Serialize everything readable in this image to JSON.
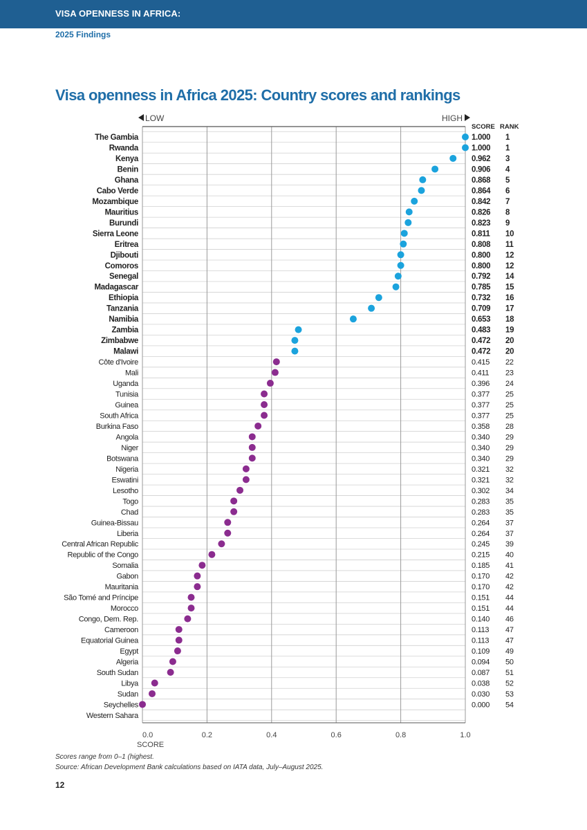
{
  "header": {
    "band_title": "VISA OPENNESS IN AFRICA:",
    "subtitle": "2025 Findings"
  },
  "colors": {
    "band": "#1f5f92",
    "accent": "#1f6ea8",
    "high_dot": "#1ba3dd",
    "low_dot": "#8b2c8f"
  },
  "chart_data": {
    "type": "scatter",
    "title": "Visa openness in Africa 2025: Country scores and rankings",
    "xlabel": "SCORE",
    "xlim": [
      0,
      1
    ],
    "xticks": [
      "0.0",
      "0.2",
      "0.4",
      "0.6",
      "0.8",
      "1.0"
    ],
    "xtick_values": [
      0,
      0.2,
      0.4,
      0.6,
      0.8,
      1.0
    ],
    "low_label": "LOW",
    "high_label": "HIGH",
    "score_header": "SCORE",
    "rank_header": "RANK",
    "countries": [
      {
        "name": "The Gambia",
        "score": 1.0,
        "score_text": "1.000",
        "rank": "1",
        "group": "high"
      },
      {
        "name": "Rwanda",
        "score": 1.0,
        "score_text": "1.000",
        "rank": "1",
        "group": "high"
      },
      {
        "name": "Kenya",
        "score": 0.962,
        "score_text": "0.962",
        "rank": "3",
        "group": "high"
      },
      {
        "name": "Benin",
        "score": 0.906,
        "score_text": "0.906",
        "rank": "4",
        "group": "high"
      },
      {
        "name": "Ghana",
        "score": 0.868,
        "score_text": "0.868",
        "rank": "5",
        "group": "high"
      },
      {
        "name": "Cabo Verde",
        "score": 0.864,
        "score_text": "0.864",
        "rank": "6",
        "group": "high"
      },
      {
        "name": "Mozambique",
        "score": 0.842,
        "score_text": "0.842",
        "rank": "7",
        "group": "high"
      },
      {
        "name": "Mauritius",
        "score": 0.826,
        "score_text": "0.826",
        "rank": "8",
        "group": "high"
      },
      {
        "name": "Burundi",
        "score": 0.823,
        "score_text": "0.823",
        "rank": "9",
        "group": "high"
      },
      {
        "name": "Sierra Leone",
        "score": 0.811,
        "score_text": "0.811",
        "rank": "10",
        "group": "high"
      },
      {
        "name": "Eritrea",
        "score": 0.808,
        "score_text": "0.808",
        "rank": "11",
        "group": "high"
      },
      {
        "name": "Djibouti",
        "score": 0.8,
        "score_text": "0.800",
        "rank": "12",
        "group": "high"
      },
      {
        "name": "Comoros",
        "score": 0.8,
        "score_text": "0.800",
        "rank": "12",
        "group": "high"
      },
      {
        "name": "Senegal",
        "score": 0.792,
        "score_text": "0.792",
        "rank": "14",
        "group": "high"
      },
      {
        "name": "Madagascar",
        "score": 0.785,
        "score_text": "0.785",
        "rank": "15",
        "group": "high"
      },
      {
        "name": "Ethiopia",
        "score": 0.732,
        "score_text": "0.732",
        "rank": "16",
        "group": "high"
      },
      {
        "name": "Tanzania",
        "score": 0.709,
        "score_text": "0.709",
        "rank": "17",
        "group": "high"
      },
      {
        "name": "Namibia",
        "score": 0.653,
        "score_text": "0.653",
        "rank": "18",
        "group": "high"
      },
      {
        "name": "Zambia",
        "score": 0.483,
        "score_text": "0.483",
        "rank": "19",
        "group": "high"
      },
      {
        "name": "Zimbabwe",
        "score": 0.472,
        "score_text": "0.472",
        "rank": "20",
        "group": "high"
      },
      {
        "name": "Malawi",
        "score": 0.472,
        "score_text": "0.472",
        "rank": "20",
        "group": "high"
      },
      {
        "name": "Côte d'Ivoire",
        "score": 0.415,
        "score_text": "0.415",
        "rank": "22",
        "group": "low"
      },
      {
        "name": "Mali",
        "score": 0.411,
        "score_text": "0.411",
        "rank": "23",
        "group": "low"
      },
      {
        "name": "Uganda",
        "score": 0.396,
        "score_text": "0.396",
        "rank": "24",
        "group": "low"
      },
      {
        "name": "Tunisia",
        "score": 0.377,
        "score_text": "0.377",
        "rank": "25",
        "group": "low"
      },
      {
        "name": "Guinea",
        "score": 0.377,
        "score_text": "0.377",
        "rank": "25",
        "group": "low"
      },
      {
        "name": "South Africa",
        "score": 0.377,
        "score_text": "0.377",
        "rank": "25",
        "group": "low"
      },
      {
        "name": "Burkina Faso",
        "score": 0.358,
        "score_text": "0.358",
        "rank": "28",
        "group": "low"
      },
      {
        "name": "Angola",
        "score": 0.34,
        "score_text": "0.340",
        "rank": "29",
        "group": "low"
      },
      {
        "name": "Niger",
        "score": 0.34,
        "score_text": "0.340",
        "rank": "29",
        "group": "low"
      },
      {
        "name": "Botswana",
        "score": 0.34,
        "score_text": "0.340",
        "rank": "29",
        "group": "low"
      },
      {
        "name": "Nigeria",
        "score": 0.321,
        "score_text": "0.321",
        "rank": "32",
        "group": "low"
      },
      {
        "name": "Eswatini",
        "score": 0.321,
        "score_text": "0.321",
        "rank": "32",
        "group": "low"
      },
      {
        "name": "Lesotho",
        "score": 0.302,
        "score_text": "0.302",
        "rank": "34",
        "group": "low"
      },
      {
        "name": "Togo",
        "score": 0.283,
        "score_text": "0.283",
        "rank": "35",
        "group": "low"
      },
      {
        "name": "Chad",
        "score": 0.283,
        "score_text": "0.283",
        "rank": "35",
        "group": "low"
      },
      {
        "name": "Guinea-Bissau",
        "score": 0.264,
        "score_text": "0.264",
        "rank": "37",
        "group": "low"
      },
      {
        "name": "Liberia",
        "score": 0.264,
        "score_text": "0.264",
        "rank": "37",
        "group": "low"
      },
      {
        "name": "Central African Republic",
        "score": 0.245,
        "score_text": "0.245",
        "rank": "39",
        "group": "low"
      },
      {
        "name": "Republic of the Congo",
        "score": 0.215,
        "score_text": "0.215",
        "rank": "40",
        "group": "low"
      },
      {
        "name": "Somalia",
        "score": 0.185,
        "score_text": "0.185",
        "rank": "41",
        "group": "low"
      },
      {
        "name": "Gabon",
        "score": 0.17,
        "score_text": "0.170",
        "rank": "42",
        "group": "low"
      },
      {
        "name": "Mauritania",
        "score": 0.17,
        "score_text": "0.170",
        "rank": "42",
        "group": "low"
      },
      {
        "name": "São Tomé and Príncipe",
        "score": 0.151,
        "score_text": "0.151",
        "rank": "44",
        "group": "low"
      },
      {
        "name": "Morocco",
        "score": 0.151,
        "score_text": "0.151",
        "rank": "44",
        "group": "low"
      },
      {
        "name": "Congo, Dem. Rep.",
        "score": 0.14,
        "score_text": "0.140",
        "rank": "46",
        "group": "low"
      },
      {
        "name": "Cameroon",
        "score": 0.113,
        "score_text": "0.113",
        "rank": "47",
        "group": "low"
      },
      {
        "name": "Equatorial Guinea",
        "score": 0.113,
        "score_text": "0.113",
        "rank": "47",
        "group": "low"
      },
      {
        "name": "Egypt",
        "score": 0.109,
        "score_text": "0.109",
        "rank": "49",
        "group": "low"
      },
      {
        "name": "Algeria",
        "score": 0.094,
        "score_text": "0.094",
        "rank": "50",
        "group": "low"
      },
      {
        "name": "South Sudan",
        "score": 0.087,
        "score_text": "0.087",
        "rank": "51",
        "group": "low"
      },
      {
        "name": "Libya",
        "score": 0.038,
        "score_text": "0.038",
        "rank": "52",
        "group": "low"
      },
      {
        "name": "Sudan",
        "score": 0.03,
        "score_text": "0.030",
        "rank": "53",
        "group": "low"
      },
      {
        "name": "Seychelles",
        "score": 0.0,
        "score_text": "0.000",
        "rank": "54",
        "group": "low"
      },
      {
        "name": "Western Sahara",
        "score": null,
        "score_text": "",
        "rank": "",
        "group": "low"
      }
    ]
  },
  "notes": {
    "range": "Scores range from 0–1 (highest.",
    "source": "Source: African Development Bank calculations based on IATA data, July–August 2025."
  },
  "page_number": "12"
}
